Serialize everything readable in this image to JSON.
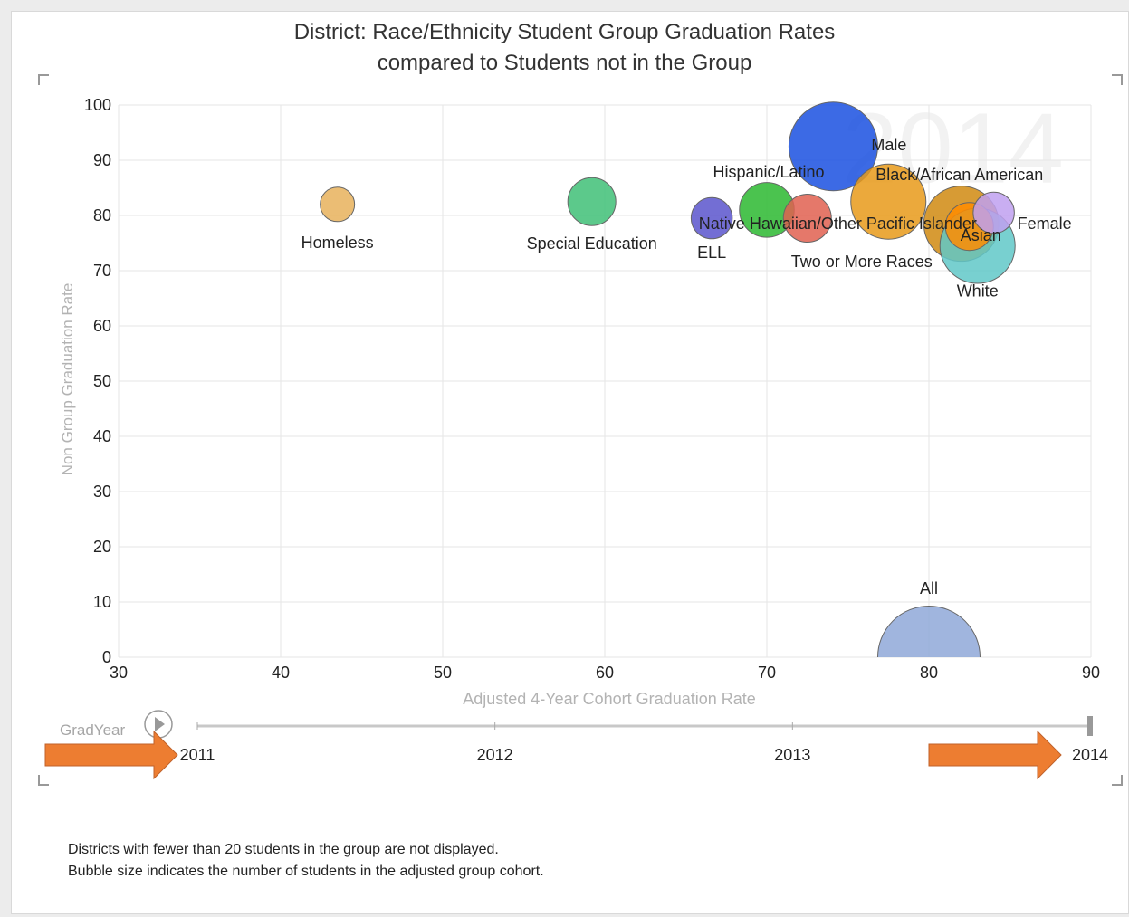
{
  "chart_data": {
    "type": "scatter",
    "title_line1": "District: Race/Ethnicity Student Group Graduation Rates",
    "title_line2": "compared to Students not in the Group",
    "xlabel": "Adjusted 4-Year Cohort Graduation Rate",
    "ylabel": "Non Group Graduation Rate",
    "xlim": [
      30,
      90
    ],
    "ylim": [
      0,
      100
    ],
    "x_ticks": [
      30,
      40,
      50,
      60,
      70,
      80,
      90
    ],
    "y_ticks": [
      0,
      10,
      20,
      30,
      40,
      50,
      60,
      70,
      80,
      90,
      100
    ],
    "watermark_year": "2014",
    "points": [
      {
        "label": "Homeless",
        "x": 43.5,
        "y": 82,
        "size": 2,
        "color": "#e8b25c"
      },
      {
        "label": "Special Education",
        "x": 59.2,
        "y": 82.5,
        "size": 3,
        "color": "#3fbf77"
      },
      {
        "label": "ELL",
        "x": 66.6,
        "y": 79.5,
        "size": 2.5,
        "color": "#5a55cc"
      },
      {
        "label": "Hispanic/Latino",
        "x": 70,
        "y": 81,
        "size": 3.5,
        "color": "#2bb830"
      },
      {
        "label": "Two or More Races",
        "x": 72.5,
        "y": 79.5,
        "size": 3,
        "color": "#e06050"
      },
      {
        "label": "Male",
        "x": 74.1,
        "y": 92.5,
        "size": 6,
        "color": "#1a50e0"
      },
      {
        "label": "Black/African American",
        "x": 77.5,
        "y": 82.5,
        "size": 5,
        "color": "#e89a1a"
      },
      {
        "label": "Native Hawaiian/Other Pacific Islander",
        "x": 82,
        "y": 78.5,
        "size": 5,
        "color": "#d08a10"
      },
      {
        "label": "White",
        "x": 83,
        "y": 74.5,
        "size": 5,
        "color": "#60c8c8"
      },
      {
        "label": "Asian",
        "x": 82.5,
        "y": 78,
        "size": 3,
        "color": "#ff8c00"
      },
      {
        "label": "Female",
        "x": 84,
        "y": 80.5,
        "size": 2.5,
        "color": "#c0a0f0"
      },
      {
        "label": "All",
        "x": 80,
        "y": 0,
        "size": 7,
        "color": "#8fa8d8"
      }
    ]
  },
  "slider": {
    "label": "GradYear",
    "years": [
      "2011",
      "2012",
      "2013",
      "2014"
    ],
    "selected": "2014"
  },
  "notes": {
    "line1": "Districts with fewer than 20 students in the group are not displayed.",
    "line2": "Bubble size indicates the number of students in the adjusted group cohort."
  },
  "colors": {
    "arrow": "#ed7d31",
    "gridline": "#e6e6e6"
  }
}
